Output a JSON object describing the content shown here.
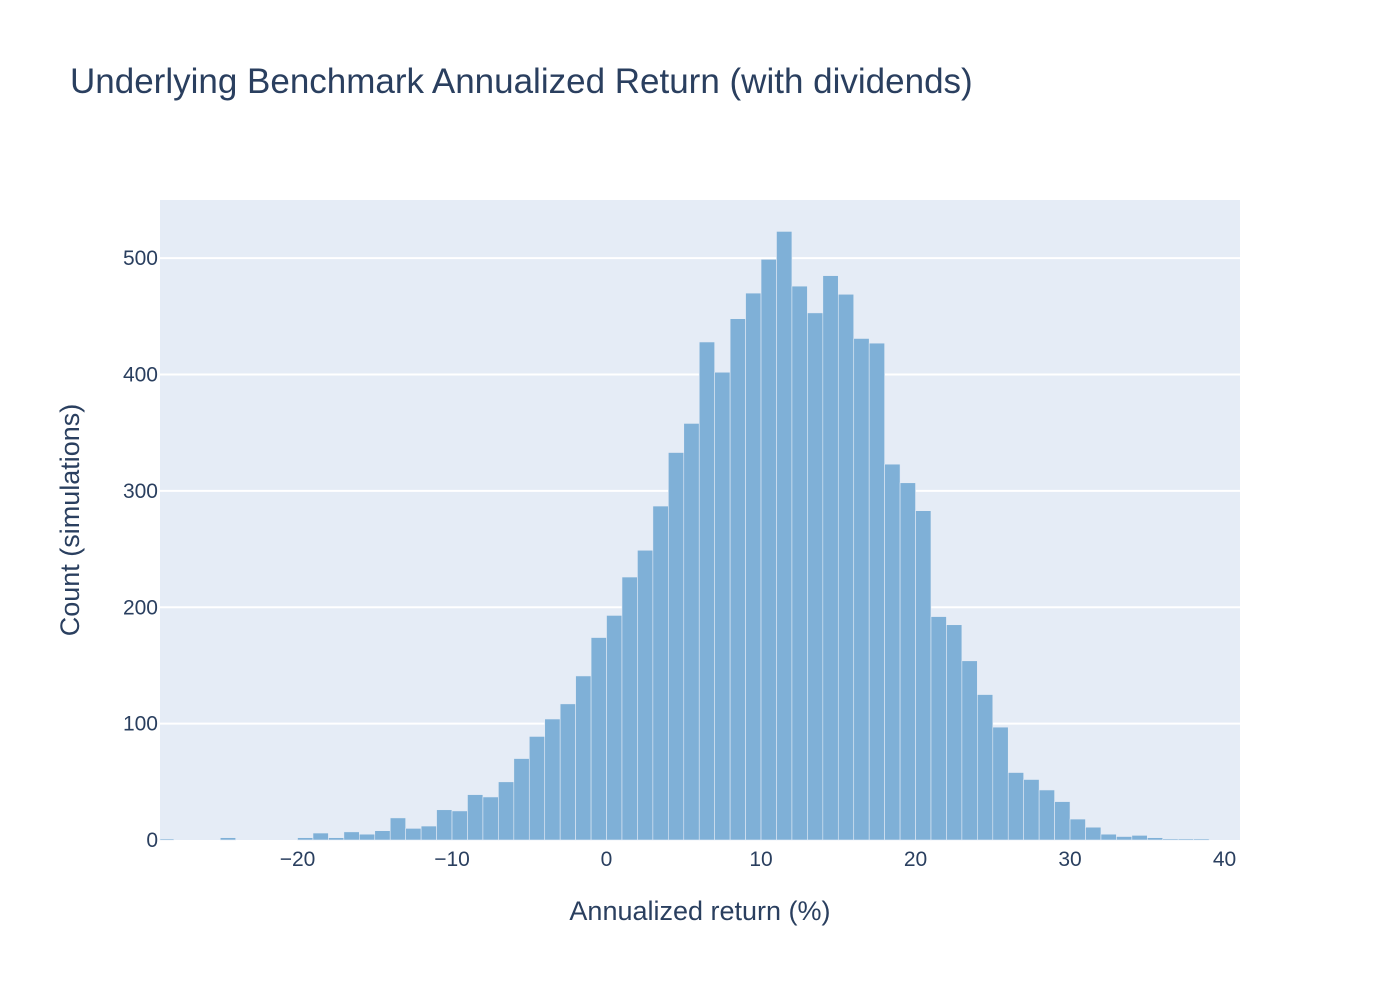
{
  "chart_data": {
    "type": "bar",
    "title": "Underlying Benchmark Annualized Return (with dividends)",
    "xlabel": "Annualized return (%)",
    "ylabel": "Count (simulations)",
    "xlim": [
      -28.9,
      41.0
    ],
    "ylim": [
      0,
      550
    ],
    "x_ticks": [
      -20,
      -10,
      0,
      10,
      20,
      30,
      40
    ],
    "x_tick_labels": [
      "−20",
      "−10",
      "0",
      "10",
      "20",
      "30",
      "40"
    ],
    "y_ticks": [
      0,
      100,
      200,
      300,
      400,
      500
    ],
    "y_tick_labels": [
      "0",
      "100",
      "200",
      "300",
      "400",
      "500"
    ],
    "bin_start": -29,
    "bin_width": 1,
    "values": [
      1,
      0,
      0,
      0,
      2,
      0,
      0,
      0,
      0,
      2,
      6,
      2,
      7,
      5,
      8,
      19,
      10,
      12,
      26,
      25,
      39,
      37,
      50,
      70,
      89,
      104,
      117,
      141,
      174,
      193,
      226,
      249,
      287,
      333,
      358,
      428,
      402,
      448,
      470,
      499,
      523,
      476,
      453,
      485,
      469,
      431,
      427,
      323,
      307,
      283,
      192,
      185,
      154,
      125,
      97,
      58,
      52,
      43,
      33,
      18,
      11,
      5,
      3,
      4,
      2,
      1,
      1,
      1,
      0,
      0,
      1
    ],
    "bar_color": "#7fb0d7",
    "plot_background": "#e5ecf6",
    "gridlines": true,
    "legend": "none"
  }
}
